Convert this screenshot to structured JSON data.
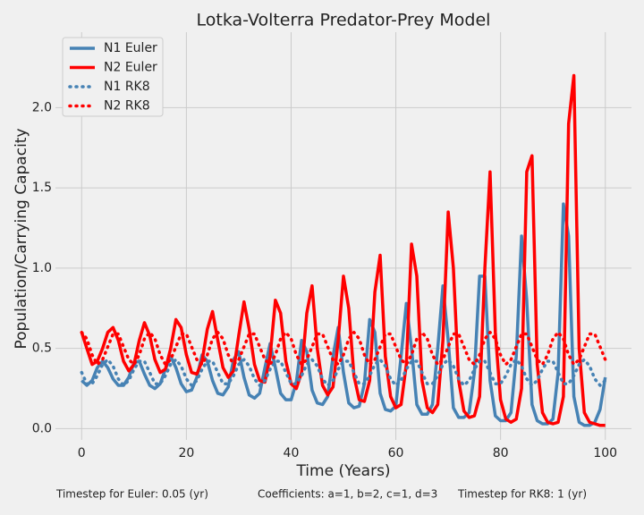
{
  "chart_data": {
    "type": "line",
    "title": "Lotka-Volterra Predator-Prey Model",
    "xlabel": "Time (Years)",
    "ylabel": "Population/Carrying Capacity",
    "annotations": [
      "Timestep for Euler: 0.05 (yr)",
      "Coefficients: a=1, b=2, c=1, d=3",
      "Timestep for RK8: 1 (yr)"
    ],
    "x": [
      0,
      1,
      2,
      3,
      4,
      5,
      6,
      7,
      8,
      9,
      10,
      11,
      12,
      13,
      14,
      15,
      16,
      17,
      18,
      19,
      20,
      21,
      22,
      23,
      24,
      25,
      26,
      27,
      28,
      29,
      30,
      31,
      32,
      33,
      34,
      35,
      36,
      37,
      38,
      39,
      40,
      41,
      42,
      43,
      44,
      45,
      46,
      47,
      48,
      49,
      50,
      51,
      52,
      53,
      54,
      55,
      56,
      57,
      58,
      59,
      60,
      61,
      62,
      63,
      64,
      65,
      66,
      67,
      68,
      69,
      70,
      71,
      72,
      73,
      74,
      75,
      76,
      77,
      78,
      79,
      80,
      81,
      82,
      83,
      84,
      85,
      86,
      87,
      88,
      89,
      90,
      91,
      92,
      93,
      94,
      95,
      96,
      97,
      98,
      99,
      100
    ],
    "series": [
      {
        "name": "N1 Euler",
        "color": "#4682b4",
        "style": "solid",
        "values": [
          0.3,
          0.27,
          0.3,
          0.38,
          0.42,
          0.38,
          0.31,
          0.27,
          0.27,
          0.32,
          0.41,
          0.42,
          0.34,
          0.27,
          0.25,
          0.28,
          0.37,
          0.45,
          0.38,
          0.28,
          0.23,
          0.24,
          0.32,
          0.46,
          0.42,
          0.3,
          0.22,
          0.21,
          0.26,
          0.43,
          0.48,
          0.32,
          0.21,
          0.19,
          0.22,
          0.38,
          0.53,
          0.38,
          0.22,
          0.18,
          0.18,
          0.29,
          0.55,
          0.48,
          0.24,
          0.16,
          0.15,
          0.2,
          0.45,
          0.63,
          0.35,
          0.16,
          0.13,
          0.14,
          0.28,
          0.68,
          0.6,
          0.22,
          0.12,
          0.11,
          0.14,
          0.45,
          0.78,
          0.5,
          0.15,
          0.09,
          0.09,
          0.15,
          0.5,
          0.89,
          0.55,
          0.13,
          0.07,
          0.07,
          0.1,
          0.35,
          0.95,
          0.95,
          0.3,
          0.08,
          0.05,
          0.05,
          0.1,
          0.45,
          1.2,
          0.8,
          0.15,
          0.05,
          0.03,
          0.03,
          0.06,
          0.35,
          1.4,
          1.2,
          0.2,
          0.04,
          0.02,
          0.02,
          0.04,
          0.12,
          0.32
        ]
      },
      {
        "name": "N2 Euler",
        "color": "#ff0000",
        "style": "solid",
        "values": [
          0.6,
          0.5,
          0.4,
          0.42,
          0.5,
          0.6,
          0.63,
          0.55,
          0.42,
          0.36,
          0.4,
          0.55,
          0.66,
          0.58,
          0.43,
          0.35,
          0.37,
          0.5,
          0.68,
          0.63,
          0.46,
          0.35,
          0.34,
          0.42,
          0.62,
          0.73,
          0.55,
          0.38,
          0.32,
          0.36,
          0.58,
          0.79,
          0.62,
          0.4,
          0.3,
          0.29,
          0.45,
          0.8,
          0.72,
          0.42,
          0.28,
          0.25,
          0.35,
          0.72,
          0.89,
          0.5,
          0.27,
          0.21,
          0.26,
          0.55,
          0.95,
          0.75,
          0.33,
          0.18,
          0.17,
          0.3,
          0.85,
          1.08,
          0.45,
          0.2,
          0.13,
          0.15,
          0.4,
          1.15,
          0.95,
          0.3,
          0.13,
          0.1,
          0.15,
          0.55,
          1.35,
          1.0,
          0.3,
          0.11,
          0.07,
          0.08,
          0.2,
          1.0,
          1.6,
          0.6,
          0.18,
          0.06,
          0.04,
          0.06,
          0.25,
          1.6,
          1.7,
          0.4,
          0.1,
          0.04,
          0.03,
          0.04,
          0.2,
          1.9,
          2.2,
          0.5,
          0.1,
          0.04,
          0.03,
          0.02,
          0.02
        ]
      },
      {
        "name": "N1 RK8",
        "color": "#4682b4",
        "style": "dotted",
        "values": [
          0.35,
          0.28,
          0.28,
          0.33,
          0.4,
          0.43,
          0.39,
          0.31,
          0.27,
          0.3,
          0.37,
          0.42,
          0.42,
          0.35,
          0.28,
          0.28,
          0.33,
          0.4,
          0.43,
          0.39,
          0.31,
          0.27,
          0.3,
          0.37,
          0.42,
          0.42,
          0.35,
          0.28,
          0.28,
          0.33,
          0.4,
          0.43,
          0.39,
          0.31,
          0.27,
          0.3,
          0.37,
          0.42,
          0.42,
          0.35,
          0.28,
          0.28,
          0.33,
          0.4,
          0.43,
          0.39,
          0.31,
          0.27,
          0.3,
          0.37,
          0.42,
          0.42,
          0.35,
          0.28,
          0.28,
          0.33,
          0.4,
          0.43,
          0.39,
          0.31,
          0.27,
          0.3,
          0.37,
          0.42,
          0.42,
          0.35,
          0.28,
          0.28,
          0.33,
          0.4,
          0.43,
          0.39,
          0.31,
          0.27,
          0.3,
          0.37,
          0.42,
          0.42,
          0.35,
          0.28,
          0.28,
          0.33,
          0.4,
          0.43,
          0.39,
          0.31,
          0.27,
          0.3,
          0.37,
          0.42,
          0.42,
          0.35,
          0.28,
          0.28,
          0.33,
          0.4,
          0.43,
          0.39,
          0.31,
          0.27,
          0.3
        ]
      },
      {
        "name": "N2 RK8",
        "color": "#ff0000",
        "style": "dotted",
        "values": [
          0.6,
          0.56,
          0.46,
          0.4,
          0.43,
          0.51,
          0.59,
          0.59,
          0.51,
          0.43,
          0.4,
          0.46,
          0.56,
          0.6,
          0.56,
          0.46,
          0.4,
          0.43,
          0.51,
          0.59,
          0.59,
          0.51,
          0.43,
          0.4,
          0.46,
          0.56,
          0.6,
          0.56,
          0.46,
          0.4,
          0.43,
          0.51,
          0.59,
          0.59,
          0.51,
          0.43,
          0.4,
          0.46,
          0.56,
          0.6,
          0.56,
          0.46,
          0.4,
          0.43,
          0.51,
          0.59,
          0.59,
          0.51,
          0.43,
          0.4,
          0.46,
          0.56,
          0.6,
          0.56,
          0.46,
          0.4,
          0.43,
          0.51,
          0.59,
          0.59,
          0.51,
          0.43,
          0.4,
          0.46,
          0.56,
          0.6,
          0.56,
          0.46,
          0.4,
          0.43,
          0.51,
          0.59,
          0.59,
          0.51,
          0.43,
          0.4,
          0.46,
          0.56,
          0.6,
          0.56,
          0.46,
          0.4,
          0.43,
          0.51,
          0.59,
          0.59,
          0.51,
          0.43,
          0.4,
          0.46,
          0.56,
          0.6,
          0.56,
          0.46,
          0.4,
          0.43,
          0.51,
          0.59,
          0.59,
          0.51,
          0.43
        ]
      }
    ],
    "xlim": [
      -5,
      105
    ],
    "xticks": [
      0,
      20,
      40,
      60,
      80,
      100
    ],
    "ylim": [
      -0.07,
      2.47
    ],
    "yticks": [
      {
        "value": 0,
        "label": "0.0"
      },
      {
        "value": 0.5,
        "label": "0.5"
      },
      {
        "value": 1,
        "label": "1.0"
      },
      {
        "value": 1.5,
        "label": "1.5"
      },
      {
        "value": 2,
        "label": "2.0"
      }
    ],
    "grid": true,
    "legend": "upper-left"
  }
}
